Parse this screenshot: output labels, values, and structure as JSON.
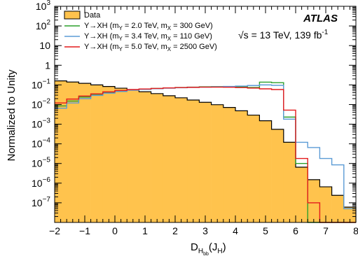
{
  "chart_data": {
    "type": "histogram",
    "xlabel_main": "D",
    "xlabel_sub": "H",
    "xlabel_subsub": "bb",
    "xlabel_arg_open": "(J",
    "xlabel_arg_sub": "H",
    "xlabel_arg_close": ")",
    "ylabel": "Normalized to Unity",
    "experiment": "ATLAS",
    "energy_label": "√s = 13 TeV, 139 fb",
    "energy_sup": "-1",
    "xlim": [
      -2,
      8
    ],
    "ylim_exp": [
      -8,
      3
    ],
    "log_y": true,
    "x_ticks": [
      -2,
      -1,
      0,
      1,
      2,
      3,
      4,
      5,
      6,
      7,
      8
    ],
    "x_tick_labels": [
      "−2",
      "−1",
      "0",
      "1",
      "2",
      "3",
      "4",
      "5",
      "6",
      "7",
      "8"
    ],
    "y_ticks_exp": [
      -7,
      -6,
      -5,
      -4,
      -3,
      -2,
      -1,
      0,
      1,
      2,
      3
    ],
    "y_tick_labels": [
      {
        "base": "10",
        "exp": "−7",
        "val": -7
      },
      {
        "base": "10",
        "exp": "−6",
        "val": -6
      },
      {
        "base": "10",
        "exp": "−5",
        "val": -5
      },
      {
        "base": "10",
        "exp": "−4",
        "val": -4
      },
      {
        "base": "10",
        "exp": "−3",
        "val": -3
      },
      {
        "base": "10",
        "exp": "−2",
        "val": -2
      },
      {
        "base": "10",
        "exp": "−1",
        "val": -1
      },
      {
        "base": "",
        "exp": "",
        "text": "1",
        "val": 0
      },
      {
        "base": "",
        "exp": "",
        "text": "10",
        "val": 1
      },
      {
        "base": "10",
        "exp": "2",
        "val": 2
      },
      {
        "base": "10",
        "exp": "3",
        "val": 3
      }
    ],
    "bin_edges": [
      -2.0,
      -1.6,
      -1.2,
      -0.8,
      -0.4,
      0.0,
      0.4,
      0.8,
      1.2,
      1.6,
      2.0,
      2.4,
      2.8,
      3.2,
      3.6,
      4.0,
      4.4,
      4.8,
      5.2,
      5.6,
      6.0,
      6.4,
      6.8,
      7.2,
      7.6,
      8.0
    ],
    "series": [
      {
        "name": "Data",
        "style": "filled",
        "fill": "#ffc34d",
        "stroke": "#000000",
        "values": [
          0.16,
          0.14,
          0.12,
          0.1,
          0.083,
          0.068,
          0.055,
          0.045,
          0.036,
          0.028,
          0.022,
          0.017,
          0.013,
          0.0098,
          0.0071,
          0.0048,
          0.0029,
          0.0015,
          0.00055,
          0.00012,
          6.5e-06,
          1.5e-06,
          6.5e-07,
          2.4e-07,
          6e-08
        ]
      },
      {
        "name": "Y→XH (m_Y = 2.0 TeV, m_X = 300 GeV)",
        "label_parts": [
          "Y→XH (m",
          "Y",
          " = 2.0 TeV, m",
          "X",
          " = 300 GeV)"
        ],
        "style": "line",
        "color": "#2ca02c",
        "values": [
          0.0085,
          0.015,
          0.024,
          0.033,
          0.042,
          0.05,
          0.056,
          0.061,
          0.066,
          0.07,
          0.074,
          0.077,
          0.08,
          0.082,
          0.082,
          0.079,
          0.074,
          0.138,
          0.13,
          0.0023,
          1e-05,
          1e-08,
          1e-08,
          1e-08,
          1e-08
        ]
      },
      {
        "name": "Y→XH (m_Y = 3.4 TeV, m_X = 110 GeV)",
        "label_parts": [
          "Y→XH (m",
          "Y",
          " = 3.4 TeV, m",
          "X",
          " = 110 GeV)"
        ],
        "style": "line",
        "color": "#5b9bd5",
        "values": [
          0.0065,
          0.012,
          0.02,
          0.029,
          0.038,
          0.046,
          0.053,
          0.059,
          0.064,
          0.068,
          0.072,
          0.075,
          0.077,
          0.08,
          0.083,
          0.087,
          0.093,
          0.1,
          0.095,
          0.0018,
          0.00012,
          6.5e-05,
          1.8e-05,
          8.5e-06,
          5e-08
        ]
      },
      {
        "name": "Y→XH (m_Y = 5.0 TeV, m_X = 2500 GeV)",
        "label_parts": [
          "Y→XH (m",
          "Y",
          " = 5.0 TeV, m",
          "X",
          " = 2500 GeV)"
        ],
        "style": "line",
        "color": "#e41a1c",
        "values": [
          0.012,
          0.019,
          0.027,
          0.035,
          0.044,
          0.052,
          0.058,
          0.062,
          0.066,
          0.07,
          0.073,
          0.075,
          0.077,
          0.077,
          0.076,
          0.073,
          0.069,
          0.063,
          0.058,
          0.0052,
          1.8e-05,
          1e-07,
          1e-08,
          1e-08,
          1e-08
        ]
      }
    ]
  }
}
